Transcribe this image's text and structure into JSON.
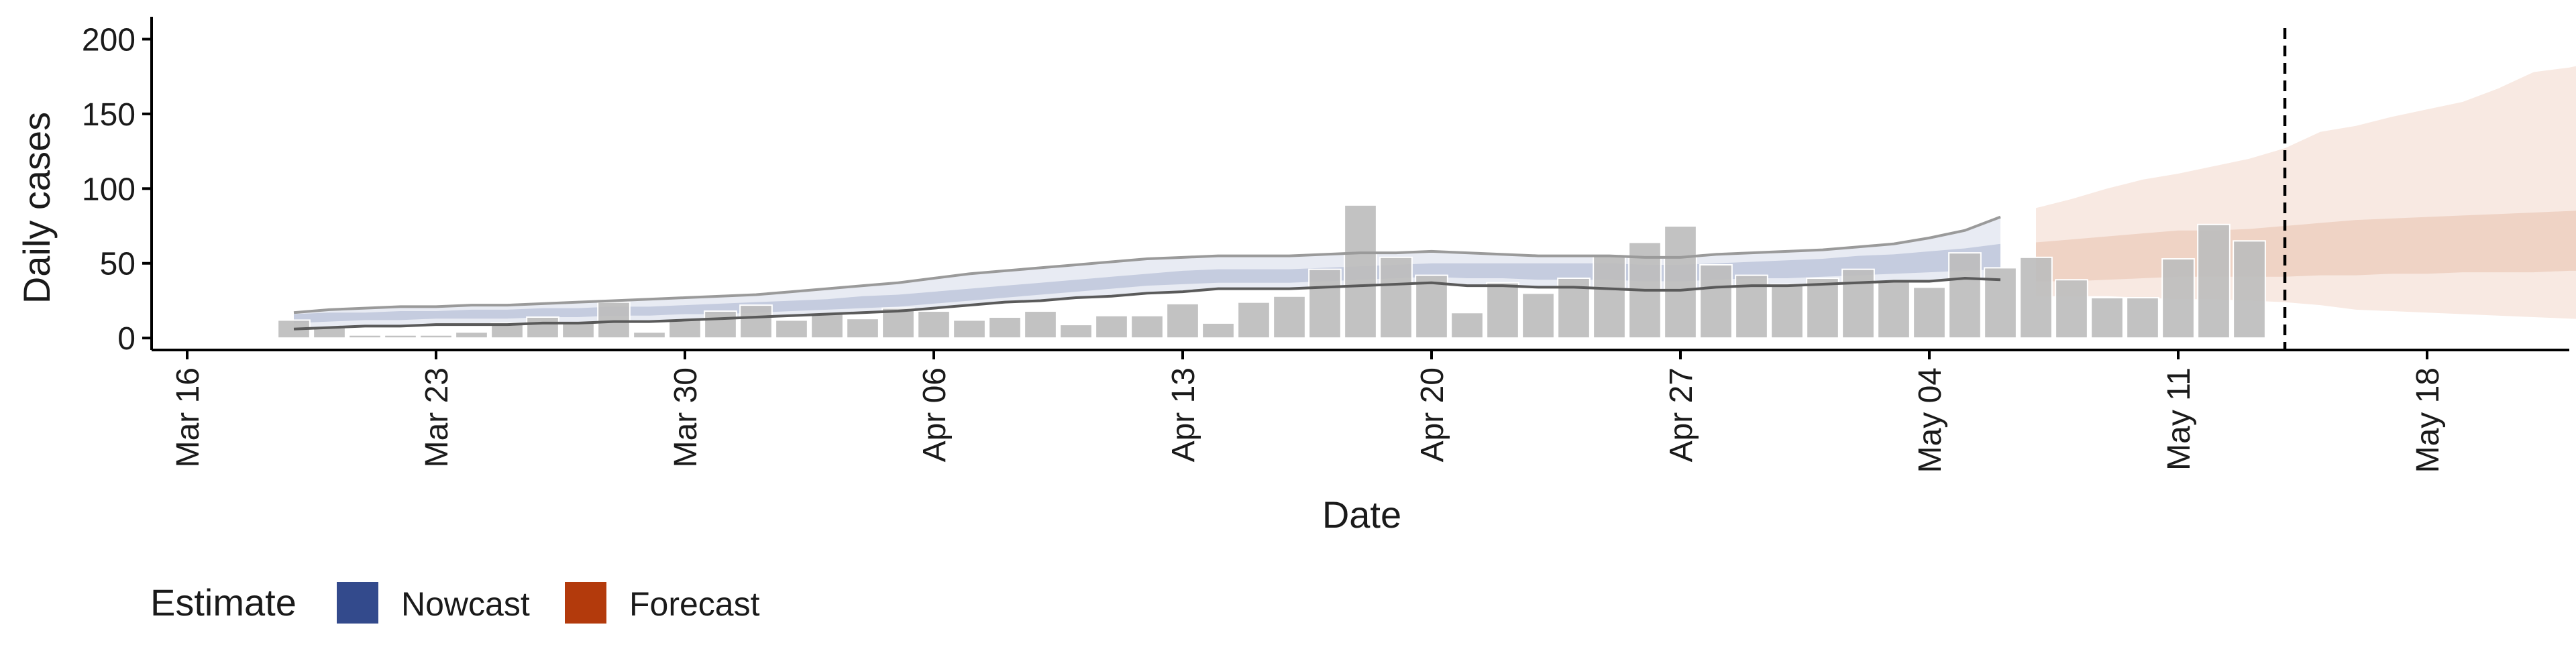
{
  "chart_data": {
    "type": "bar",
    "title": "",
    "xlabel": "Date",
    "ylabel": "Daily cases",
    "ylim": [
      -8,
      215
    ],
    "yticks": [
      0,
      50,
      100,
      150,
      200
    ],
    "x_range": [
      "2020-03-15",
      "2020-05-22"
    ],
    "x_ticks": [
      {
        "date": "2020-03-16",
        "label": "Mar 16"
      },
      {
        "date": "2020-03-23",
        "label": "Mar 23"
      },
      {
        "date": "2020-03-30",
        "label": "Mar 30"
      },
      {
        "date": "2020-04-06",
        "label": "Apr 06"
      },
      {
        "date": "2020-04-13",
        "label": "Apr 13"
      },
      {
        "date": "2020-04-20",
        "label": "Apr 20"
      },
      {
        "date": "2020-04-27",
        "label": "Apr 27"
      },
      {
        "date": "2020-05-04",
        "label": "May 04"
      },
      {
        "date": "2020-05-11",
        "label": "May 11"
      },
      {
        "date": "2020-05-18",
        "label": "May 18"
      }
    ],
    "x_start_date": "2020-03-19",
    "reported_cases": [
      12,
      7,
      2,
      2,
      2,
      4,
      10,
      14,
      10,
      24,
      4,
      12,
      18,
      22,
      12,
      16,
      13,
      20,
      18,
      12,
      14,
      18,
      9,
      15,
      15,
      23,
      10,
      24,
      28,
      46,
      89,
      54,
      42,
      17,
      37,
      30,
      40,
      55,
      64,
      75,
      49,
      42,
      36,
      40,
      46,
      38,
      34,
      57,
      47,
      54,
      39,
      27,
      27,
      53,
      76,
      65
    ],
    "nowcast": {
      "x_start_date": "2020-03-19",
      "median": [
        12,
        13,
        14,
        14,
        15,
        15,
        15,
        16,
        16,
        17,
        17,
        18,
        19,
        20,
        21,
        22,
        24,
        25,
        27,
        29,
        31,
        33,
        35,
        37,
        39,
        40,
        41,
        41,
        41,
        42,
        43,
        44,
        45,
        45,
        45,
        45,
        45,
        45,
        44,
        44,
        45,
        46,
        46,
        47,
        48,
        49,
        51,
        52,
        54
      ],
      "ci50": [
        [
          10,
          16
        ],
        [
          11,
          17
        ],
        [
          12,
          17
        ],
        [
          12,
          18
        ],
        [
          13,
          18
        ],
        [
          13,
          19
        ],
        [
          13,
          19
        ],
        [
          14,
          20
        ],
        [
          14,
          20
        ],
        [
          15,
          21
        ],
        [
          15,
          21
        ],
        [
          16,
          22
        ],
        [
          16,
          23
        ],
        [
          17,
          24
        ],
        [
          18,
          25
        ],
        [
          19,
          26
        ],
        [
          20,
          28
        ],
        [
          21,
          29
        ],
        [
          23,
          31
        ],
        [
          25,
          33
        ],
        [
          27,
          35
        ],
        [
          29,
          37
        ],
        [
          31,
          39
        ],
        [
          33,
          41
        ],
        [
          35,
          43
        ],
        [
          36,
          45
        ],
        [
          37,
          46
        ],
        [
          37,
          46
        ],
        [
          37,
          46
        ],
        [
          38,
          47
        ],
        [
          39,
          48
        ],
        [
          40,
          49
        ],
        [
          41,
          50
        ],
        [
          40,
          50
        ],
        [
          40,
          50
        ],
        [
          39,
          50
        ],
        [
          39,
          50
        ],
        [
          39,
          50
        ],
        [
          38,
          49
        ],
        [
          38,
          49
        ],
        [
          39,
          50
        ],
        [
          40,
          51
        ],
        [
          40,
          52
        ],
        [
          41,
          53
        ],
        [
          42,
          55
        ],
        [
          43,
          56
        ],
        [
          44,
          58
        ],
        [
          45,
          60
        ],
        [
          46,
          63
        ]
      ],
      "ci90": [
        [
          6,
          17
        ],
        [
          7,
          19
        ],
        [
          8,
          20
        ],
        [
          8,
          21
        ],
        [
          9,
          21
        ],
        [
          9,
          22
        ],
        [
          9,
          22
        ],
        [
          10,
          23
        ],
        [
          10,
          24
        ],
        [
          11,
          25
        ],
        [
          11,
          26
        ],
        [
          12,
          27
        ],
        [
          13,
          28
        ],
        [
          14,
          29
        ],
        [
          15,
          31
        ],
        [
          16,
          33
        ],
        [
          17,
          35
        ],
        [
          18,
          37
        ],
        [
          20,
          40
        ],
        [
          22,
          43
        ],
        [
          24,
          45
        ],
        [
          25,
          47
        ],
        [
          27,
          49
        ],
        [
          28,
          51
        ],
        [
          30,
          53
        ],
        [
          31,
          54
        ],
        [
          33,
          55
        ],
        [
          33,
          55
        ],
        [
          33,
          55
        ],
        [
          34,
          56
        ],
        [
          35,
          57
        ],
        [
          36,
          57
        ],
        [
          37,
          58
        ],
        [
          35,
          57
        ],
        [
          35,
          56
        ],
        [
          34,
          55
        ],
        [
          34,
          55
        ],
        [
          33,
          55
        ],
        [
          32,
          54
        ],
        [
          32,
          54
        ],
        [
          34,
          56
        ],
        [
          35,
          57
        ],
        [
          35,
          58
        ],
        [
          36,
          59
        ],
        [
          37,
          61
        ],
        [
          38,
          63
        ],
        [
          38,
          67
        ],
        [
          40,
          72
        ],
        [
          39,
          81
        ]
      ]
    },
    "forecast": {
      "x_start_date": "2020-05-07",
      "median": [
        50,
        52,
        54,
        55,
        56,
        57,
        58,
        58,
        59,
        60,
        60,
        61,
        61,
        62,
        62,
        62,
        63,
        63,
        63,
        63
      ],
      "ci50": [
        [
          38,
          64
        ],
        [
          38,
          66
        ],
        [
          39,
          68
        ],
        [
          40,
          70
        ],
        [
          41,
          72
        ],
        [
          41,
          72
        ],
        [
          41,
          73
        ],
        [
          41,
          75
        ],
        [
          42,
          77
        ],
        [
          42,
          79
        ],
        [
          43,
          80
        ],
        [
          43,
          81
        ],
        [
          44,
          82
        ],
        [
          44,
          83
        ],
        [
          44,
          84
        ],
        [
          45,
          85
        ],
        [
          45,
          86
        ],
        [
          45,
          87
        ],
        [
          45,
          87
        ],
        [
          45,
          88
        ]
      ],
      "ci90": [
        [
          28,
          87
        ],
        [
          28,
          93
        ],
        [
          28,
          100
        ],
        [
          27,
          106
        ],
        [
          26,
          110
        ],
        [
          26,
          115
        ],
        [
          25,
          120
        ],
        [
          24,
          127
        ],
        [
          22,
          138
        ],
        [
          19,
          142
        ],
        [
          18,
          148
        ],
        [
          17,
          153
        ],
        [
          16,
          158
        ],
        [
          15,
          167
        ],
        [
          14,
          178
        ],
        [
          13,
          181
        ],
        [
          12,
          186
        ],
        [
          11,
          191
        ],
        [
          10,
          196
        ],
        [
          9,
          201
        ]
      ]
    },
    "vline_date": "2020-05-14",
    "legend": {
      "title": "Estimate",
      "placement": "bottom-left",
      "items": [
        {
          "label": "Nowcast",
          "color": "#334a8c"
        },
        {
          "label": "Forecast",
          "color": "#b33a0c"
        }
      ]
    },
    "colors": {
      "bars": "#bdbdbd",
      "bar_edge": "#ffffff",
      "nowcast_outer": "#e8ebf3",
      "nowcast_inner": "#c5ccdf",
      "nowcast_line": "#757575",
      "forecast_outer": "#f8e9e2",
      "forecast_inner": "#efd3c5",
      "vline": "#000000"
    },
    "grid": false
  }
}
